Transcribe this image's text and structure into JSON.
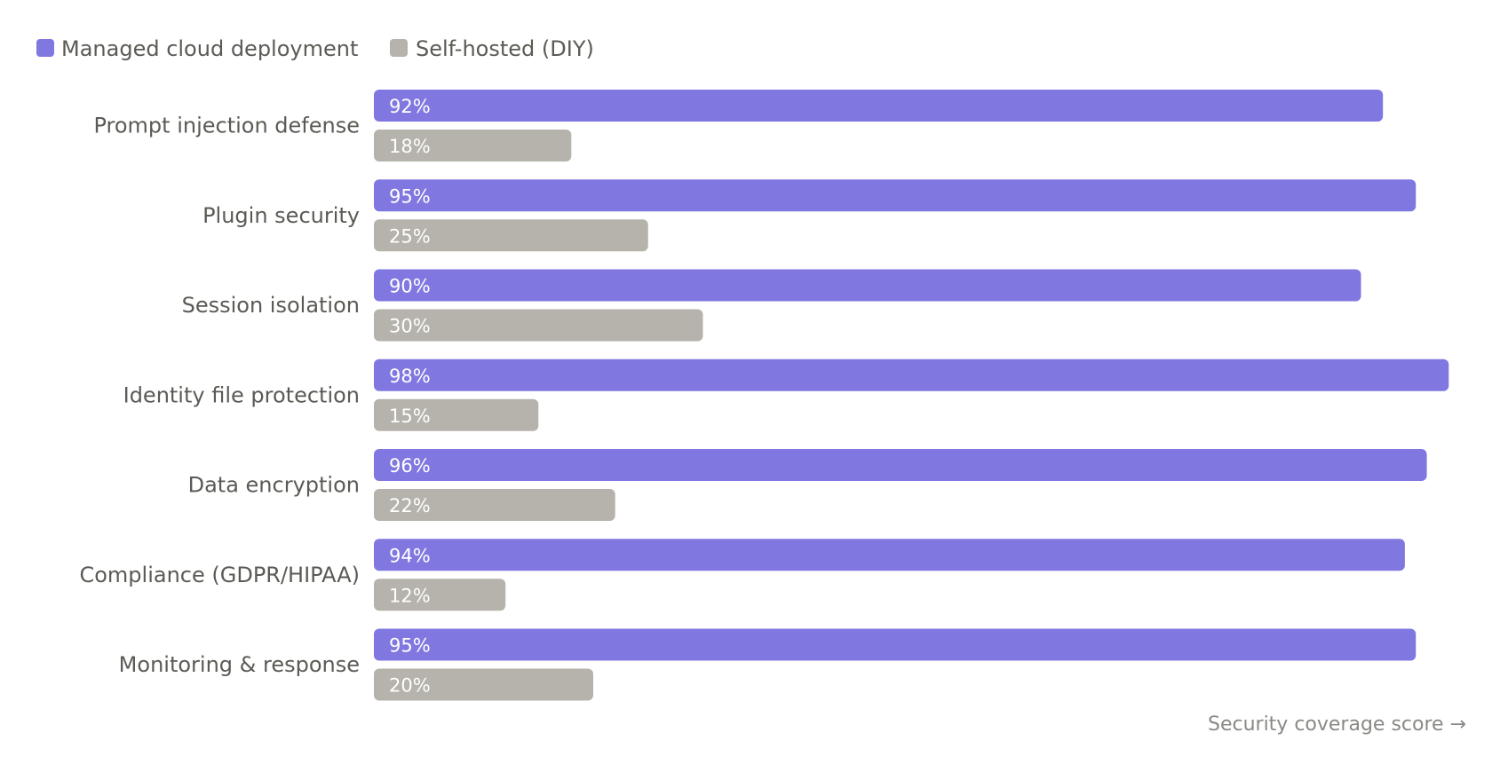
{
  "chart_data": {
    "type": "bar",
    "orientation": "horizontal",
    "categories": [
      "Prompt injection defense",
      "Plugin security",
      "Session isolation",
      "Identity file protection",
      "Data encryption",
      "Compliance (GDPR/HIPAA)",
      "Monitoring & response"
    ],
    "series": [
      {
        "name": "Managed cloud deployment",
        "color": "#8078e0",
        "values": [
          92,
          95,
          90,
          98,
          96,
          94,
          95
        ]
      },
      {
        "name": "Self-hosted (DIY)",
        "color": "#b5b3ab",
        "values": [
          18,
          25,
          30,
          15,
          22,
          12,
          20
        ]
      }
    ],
    "value_suffix": "%",
    "xlim": [
      0,
      100
    ],
    "xlabel": "Security coverage score →",
    "ylabel": "",
    "title": "",
    "grid": false,
    "legend_position": "top-left"
  }
}
